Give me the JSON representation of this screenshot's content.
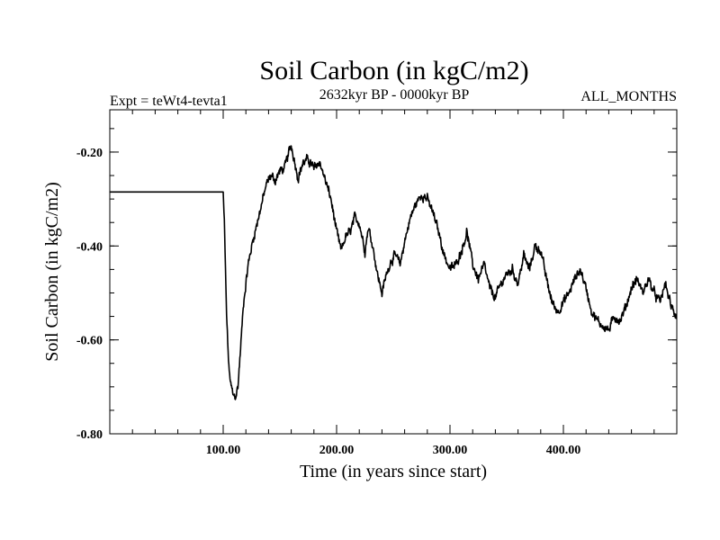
{
  "chart_data": {
    "type": "line",
    "title": "Soil Carbon (in kgC/m2)",
    "subtitle": "2632kyr BP - 0000kyr BP",
    "left_label": "Expt = teWt4-tevta1",
    "right_label": "ALL_MONTHS",
    "xlabel": "Time (in years since start)",
    "ylabel": "Soil Carbon (in kgC/m2)",
    "xlim": [
      0,
      500
    ],
    "ylim": [
      -0.8,
      -0.11
    ],
    "x_ticks": [
      100,
      200,
      300,
      400
    ],
    "x_tick_labels": [
      "100.00",
      "200.00",
      "300.00",
      "400.00"
    ],
    "x_minor_step": 20,
    "y_ticks": [
      -0.8,
      -0.6,
      -0.4,
      -0.2
    ],
    "y_tick_labels": [
      "-0.80",
      "-0.60",
      "-0.40",
      "-0.20"
    ],
    "y_minor_step": 0.05,
    "line_color": "#000000",
    "noise_amplitude": 0.012,
    "series": [
      {
        "name": "Soil Carbon",
        "points": [
          [
            0,
            -0.285
          ],
          [
            100,
            -0.285
          ],
          [
            101,
            -0.35
          ],
          [
            103,
            -0.55
          ],
          [
            105,
            -0.66
          ],
          [
            107,
            -0.7
          ],
          [
            109,
            -0.72
          ],
          [
            111,
            -0.72
          ],
          [
            113,
            -0.7
          ],
          [
            115,
            -0.63
          ],
          [
            118,
            -0.52
          ],
          [
            122,
            -0.44
          ],
          [
            126,
            -0.39
          ],
          [
            130,
            -0.35
          ],
          [
            134,
            -0.31
          ],
          [
            138,
            -0.27
          ],
          [
            142,
            -0.25
          ],
          [
            146,
            -0.26
          ],
          [
            150,
            -0.24
          ],
          [
            154,
            -0.235
          ],
          [
            158,
            -0.2
          ],
          [
            160,
            -0.185
          ],
          [
            163,
            -0.22
          ],
          [
            166,
            -0.255
          ],
          [
            170,
            -0.225
          ],
          [
            175,
            -0.215
          ],
          [
            180,
            -0.235
          ],
          [
            185,
            -0.22
          ],
          [
            190,
            -0.26
          ],
          [
            195,
            -0.3
          ],
          [
            200,
            -0.37
          ],
          [
            204,
            -0.41
          ],
          [
            208,
            -0.38
          ],
          [
            212,
            -0.37
          ],
          [
            216,
            -0.34
          ],
          [
            220,
            -0.35
          ],
          [
            225,
            -0.41
          ],
          [
            228,
            -0.36
          ],
          [
            232,
            -0.4
          ],
          [
            236,
            -0.46
          ],
          [
            240,
            -0.5
          ],
          [
            244,
            -0.46
          ],
          [
            248,
            -0.43
          ],
          [
            252,
            -0.42
          ],
          [
            256,
            -0.44
          ],
          [
            260,
            -0.39
          ],
          [
            265,
            -0.34
          ],
          [
            270,
            -0.31
          ],
          [
            275,
            -0.29
          ],
          [
            280,
            -0.3
          ],
          [
            285,
            -0.33
          ],
          [
            290,
            -0.37
          ],
          [
            295,
            -0.42
          ],
          [
            300,
            -0.45
          ],
          [
            305,
            -0.44
          ],
          [
            310,
            -0.41
          ],
          [
            315,
            -0.37
          ],
          [
            320,
            -0.44
          ],
          [
            325,
            -0.47
          ],
          [
            330,
            -0.44
          ],
          [
            335,
            -0.49
          ],
          [
            340,
            -0.51
          ],
          [
            345,
            -0.48
          ],
          [
            350,
            -0.46
          ],
          [
            355,
            -0.45
          ],
          [
            360,
            -0.48
          ],
          [
            365,
            -0.42
          ],
          [
            370,
            -0.45
          ],
          [
            375,
            -0.4
          ],
          [
            380,
            -0.41
          ],
          [
            385,
            -0.47
          ],
          [
            390,
            -0.52
          ],
          [
            395,
            -0.54
          ],
          [
            400,
            -0.52
          ],
          [
            405,
            -0.5
          ],
          [
            410,
            -0.47
          ],
          [
            415,
            -0.45
          ],
          [
            420,
            -0.49
          ],
          [
            425,
            -0.54
          ],
          [
            430,
            -0.56
          ],
          [
            435,
            -0.57
          ],
          [
            440,
            -0.58
          ],
          [
            445,
            -0.55
          ],
          [
            450,
            -0.56
          ],
          [
            455,
            -0.53
          ],
          [
            460,
            -0.49
          ],
          [
            465,
            -0.47
          ],
          [
            470,
            -0.5
          ],
          [
            475,
            -0.47
          ],
          [
            480,
            -0.5
          ],
          [
            485,
            -0.52
          ],
          [
            490,
            -0.48
          ],
          [
            495,
            -0.53
          ],
          [
            500,
            -0.55
          ]
        ]
      }
    ]
  }
}
